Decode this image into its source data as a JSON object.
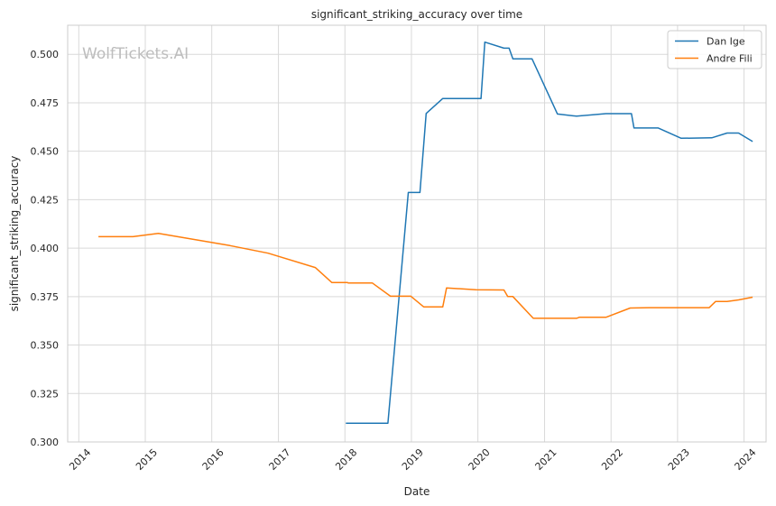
{
  "chart_data": {
    "type": "line",
    "title": "significant_striking_accuracy over time",
    "xlabel": "Date",
    "ylabel": "significant_striking_accuracy",
    "watermark": "WolfTickets.AI",
    "xlim": [
      "2013-11-01",
      "2024-05-01"
    ],
    "ylim": [
      0.3,
      0.515
    ],
    "x_ticks": [
      "2014",
      "2015",
      "2016",
      "2017",
      "2018",
      "2019",
      "2020",
      "2021",
      "2022",
      "2023",
      "2024"
    ],
    "y_ticks": [
      "0.300",
      "0.325",
      "0.350",
      "0.375",
      "0.400",
      "0.425",
      "0.450",
      "0.475",
      "0.500"
    ],
    "grid": true,
    "legend_position": "top-right",
    "series": [
      {
        "name": "Dan Ige",
        "color": "#1f77b4",
        "points": [
          [
            "2018-01-06",
            0.3097
          ],
          [
            "2018-08-25",
            0.3097
          ],
          [
            "2018-12-15",
            0.4287
          ],
          [
            "2019-02-17",
            0.4287
          ],
          [
            "2019-03-23",
            0.4695
          ],
          [
            "2019-06-22",
            0.4772
          ],
          [
            "2020-01-18",
            0.4772
          ],
          [
            "2020-02-08",
            0.5063
          ],
          [
            "2020-05-23",
            0.5032
          ],
          [
            "2020-06-20",
            0.5032
          ],
          [
            "2020-07-11",
            0.4977
          ],
          [
            "2020-10-24",
            0.4977
          ],
          [
            "2021-03-13",
            0.4692
          ],
          [
            "2021-06-26",
            0.4681
          ],
          [
            "2021-12-04",
            0.4694
          ],
          [
            "2022-04-23",
            0.4694
          ],
          [
            "2022-05-07",
            0.462
          ],
          [
            "2022-09-17",
            0.462
          ],
          [
            "2023-01-21",
            0.4567
          ],
          [
            "2023-07-08",
            0.4569
          ],
          [
            "2023-09-30",
            0.4594
          ],
          [
            "2023-12-02",
            0.4594
          ],
          [
            "2024-02-17",
            0.455
          ]
        ]
      },
      {
        "name": "Andre Fili",
        "color": "#ff7f0e",
        "points": [
          [
            "2014-04-19",
            0.4059
          ],
          [
            "2014-10-25",
            0.4059
          ],
          [
            "2015-03-14",
            0.4076
          ],
          [
            "2016-04-10",
            0.4013
          ],
          [
            "2016-11-05",
            0.3974
          ],
          [
            "2017-07-22",
            0.39
          ],
          [
            "2017-10-21",
            0.3823
          ],
          [
            "2018-01-14",
            0.3823
          ],
          [
            "2018-01-20",
            0.382
          ],
          [
            "2018-06-01",
            0.382
          ],
          [
            "2018-09-08",
            0.3752
          ],
          [
            "2018-12-29",
            0.3752
          ],
          [
            "2019-03-09",
            0.3697
          ],
          [
            "2019-06-22",
            0.3697
          ],
          [
            "2019-07-13",
            0.3795
          ],
          [
            "2019-12-21",
            0.3785
          ],
          [
            "2020-05-23",
            0.3784
          ],
          [
            "2020-06-13",
            0.375
          ],
          [
            "2020-07-11",
            0.375
          ],
          [
            "2020-10-31",
            0.3638
          ],
          [
            "2021-06-26",
            0.3638
          ],
          [
            "2021-07-10",
            0.3643
          ],
          [
            "2021-12-04",
            0.3643
          ],
          [
            "2022-04-16",
            0.3691
          ],
          [
            "2022-07-30",
            0.3693
          ],
          [
            "2023-01-01",
            0.3693
          ],
          [
            "2023-06-24",
            0.3693
          ],
          [
            "2023-07-29",
            0.3725
          ],
          [
            "2023-09-30",
            0.3725
          ],
          [
            "2023-12-02",
            0.3733
          ],
          [
            "2024-02-17",
            0.3747
          ]
        ]
      }
    ]
  }
}
